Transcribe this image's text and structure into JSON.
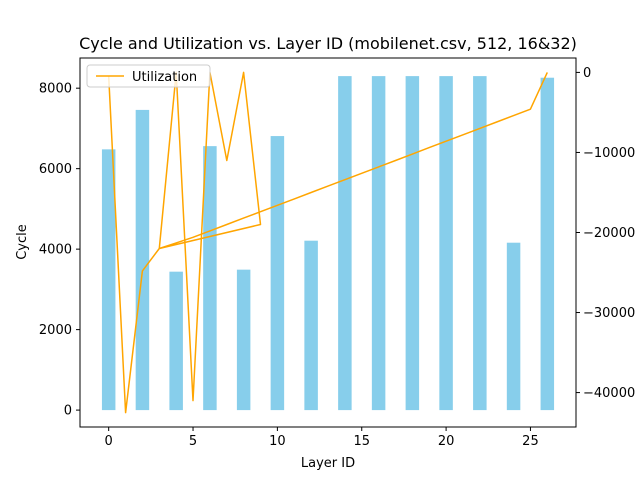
{
  "chart_data": {
    "type": "bar",
    "title": "Cycle and Utilization vs. Layer ID (mobilenet.csv, 512, 16&32)",
    "xlabel": "Layer ID",
    "ylabel": "Cycle",
    "y2label": "",
    "xlim": [
      -1.7,
      27.7
    ],
    "ylim": [
      -420,
      8750
    ],
    "y2lim": [
      -44300,
      1800
    ],
    "x_ticks": [
      0,
      5,
      10,
      15,
      20,
      25
    ],
    "y_ticks": [
      0,
      2000,
      4000,
      6000,
      8000
    ],
    "y2_ticks": [
      0,
      -10000,
      -20000,
      -30000,
      -40000
    ],
    "bar_width": 0.8,
    "legend": {
      "position": "upper-left",
      "entries": [
        "Utilization"
      ]
    },
    "colors": {
      "bars": "#87ceeb",
      "line": "#ffa500"
    },
    "series": [
      {
        "name": "Cycle",
        "kind": "bar",
        "axis": "left",
        "x": [
          0,
          2,
          4,
          6,
          8,
          10,
          12,
          14,
          16,
          18,
          20,
          22,
          24,
          26
        ],
        "values": [
          6480,
          7460,
          3440,
          6560,
          3490,
          6810,
          4210,
          8300,
          8300,
          8300,
          8300,
          8300,
          4160,
          8260
        ]
      },
      {
        "name": "Utilization",
        "kind": "line",
        "axis": "right",
        "x": [
          0,
          1,
          2,
          3,
          4,
          5,
          6,
          7,
          8,
          9,
          3,
          4,
          5,
          6,
          7,
          8,
          9,
          10,
          11,
          12,
          13,
          14,
          15,
          16,
          17,
          18,
          19,
          20,
          21,
          22,
          23,
          24,
          25,
          26
        ],
        "values": [
          -500,
          -42500,
          -24800,
          -22000,
          0,
          -41000,
          0,
          -11000,
          0,
          -19000,
          -22000,
          -21300,
          -20600,
          -19800,
          -19000,
          -18200,
          -17400,
          -16600,
          -15800,
          -15000,
          -14200,
          -13400,
          -12600,
          -11800,
          -11000,
          -10200,
          -9400,
          -8600,
          -7800,
          -7000,
          -6200,
          -5400,
          -4600,
          0
        ]
      }
    ]
  }
}
